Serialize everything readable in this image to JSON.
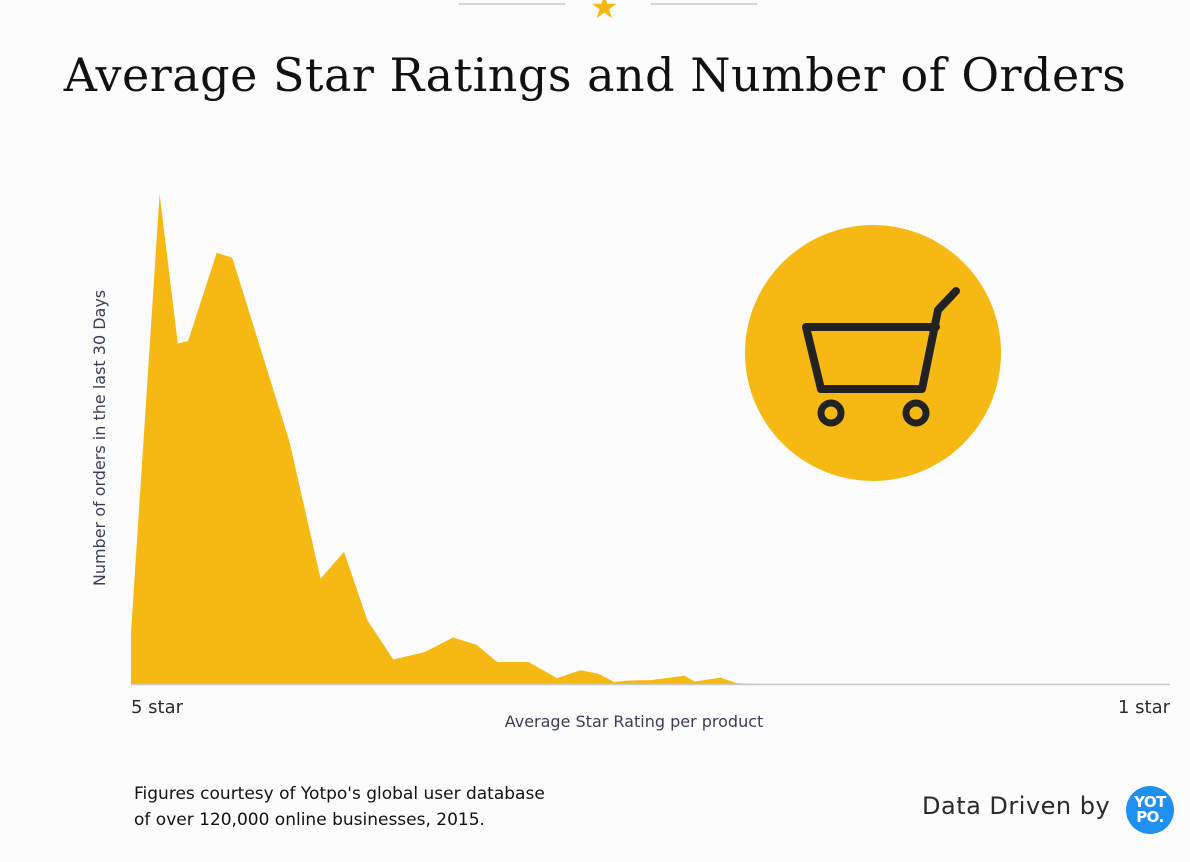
{
  "header": {
    "star_icon": "star-icon",
    "accent_color": "#f6b913"
  },
  "chart_data": {
    "type": "area",
    "title": "Average Star Ratings and Number of Orders",
    "xlabel": "Average Star Rating per product",
    "ylabel": "Number of orders in the last 30 Days",
    "x_start_label": "5 star",
    "x_end_label": "1 star",
    "x": [
      5.0,
      4.89,
      4.82,
      4.78,
      4.67,
      4.61,
      4.39,
      4.27,
      4.18,
      4.09,
      3.99,
      3.87,
      3.76,
      3.67,
      3.59,
      3.47,
      3.36,
      3.27,
      3.2,
      3.14,
      3.09,
      3.0,
      2.87,
      2.83,
      2.73,
      2.67,
      2.64,
      2.57,
      1.0
    ],
    "values": [
      10.5,
      100,
      69.5,
      70,
      88,
      87,
      49.5,
      21.5,
      27,
      13,
      5,
      6.5,
      9.5,
      8,
      4.5,
      4.5,
      1.2,
      2.8,
      2.1,
      0.4,
      0.7,
      0.8,
      1.7,
      0.5,
      1.3,
      0.2,
      0.1,
      0,
      0
    ],
    "xlim": [
      5,
      1
    ],
    "ylim": [
      0,
      100
    ],
    "y_units": "relative (no scale shown)",
    "grid": false,
    "fill_color": "#f6b913"
  },
  "cart_icon": {
    "icon": "shopping-cart-icon",
    "circle_color": "#f6b913",
    "icon_color": "#222222"
  },
  "footer": {
    "note_line1": "Figures courtesy of Yotpo's global user database",
    "note_line2": "of over 120,000 online businesses, 2015.",
    "brand_text": "Data Driven by",
    "logo_line1": "YOT",
    "logo_line2": "PO.",
    "logo_color": "#1f8ff2"
  }
}
